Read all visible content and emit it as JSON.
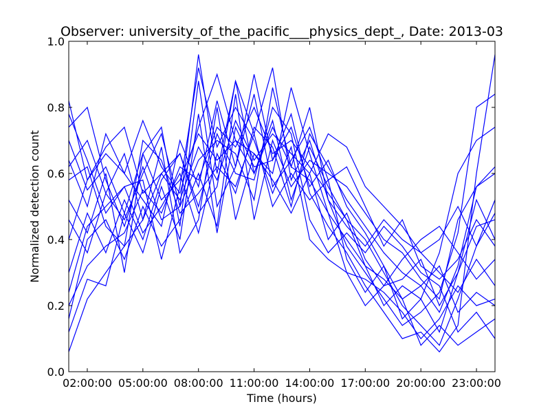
{
  "chart_data": {
    "type": "line",
    "title": "Observer: university_of_the_pacific___physics_dept_, Date: 2013-03",
    "xlabel": "Time (hours)",
    "ylabel": "Normalized detection count",
    "xlim": [
      1.0,
      24.0
    ],
    "ylim": [
      0.0,
      1.0
    ],
    "x_ticks": [
      {
        "value": 2,
        "label": "02:00:00"
      },
      {
        "value": 5,
        "label": "05:00:00"
      },
      {
        "value": 8,
        "label": "08:00:00"
      },
      {
        "value": 11,
        "label": "11:00:00"
      },
      {
        "value": 14,
        "label": "14:00:00"
      },
      {
        "value": 17,
        "label": "17:00:00"
      },
      {
        "value": 20,
        "label": "20:00:00"
      },
      {
        "value": 23,
        "label": "23:00:00"
      }
    ],
    "y_ticks": [
      {
        "value": 0.0,
        "label": "0.0"
      },
      {
        "value": 0.2,
        "label": "0.2"
      },
      {
        "value": 0.4,
        "label": "0.4"
      },
      {
        "value": 0.6,
        "label": "0.6"
      },
      {
        "value": 0.8,
        "label": "0.8"
      },
      {
        "value": 1.0,
        "label": "1.0"
      }
    ],
    "line_color": "#0000ff",
    "grid": false,
    "x": [
      1,
      2,
      3,
      4,
      5,
      6,
      7,
      8,
      9,
      10,
      11,
      12,
      13,
      14,
      15,
      16,
      17,
      18,
      19,
      20,
      21,
      22,
      23,
      24
    ],
    "series": [
      {
        "values": [
          0.7,
          0.55,
          0.62,
          0.48,
          0.66,
          0.52,
          0.58,
          0.72,
          0.64,
          0.7,
          0.6,
          0.74,
          0.62,
          0.58,
          0.48,
          0.4,
          0.32,
          0.28,
          0.22,
          0.26,
          0.18,
          0.32,
          0.56,
          0.6
        ]
      },
      {
        "values": [
          0.2,
          0.32,
          0.38,
          0.42,
          0.55,
          0.48,
          0.62,
          0.58,
          0.74,
          0.68,
          0.8,
          0.66,
          0.7,
          0.62,
          0.54,
          0.46,
          0.4,
          0.3,
          0.2,
          0.14,
          0.08,
          0.22,
          0.38,
          0.52
        ]
      },
      {
        "values": [
          0.62,
          0.7,
          0.54,
          0.46,
          0.6,
          0.72,
          0.5,
          0.96,
          0.6,
          0.88,
          0.72,
          0.92,
          0.58,
          0.7,
          0.52,
          0.38,
          0.3,
          0.22,
          0.14,
          0.18,
          0.24,
          0.42,
          0.8,
          0.84
        ]
      },
      {
        "values": [
          0.4,
          0.58,
          0.66,
          0.6,
          0.52,
          0.44,
          0.7,
          0.56,
          0.82,
          0.62,
          0.9,
          0.64,
          0.78,
          0.54,
          0.44,
          0.36,
          0.26,
          0.18,
          0.1,
          0.12,
          0.06,
          0.14,
          0.6,
          0.96
        ]
      },
      {
        "values": [
          0.06,
          0.22,
          0.3,
          0.38,
          0.46,
          0.6,
          0.52,
          0.68,
          0.58,
          0.76,
          0.64,
          0.72,
          0.66,
          0.6,
          0.4,
          0.48,
          0.34,
          0.26,
          0.28,
          0.34,
          0.2,
          0.3,
          0.44,
          0.46
        ]
      },
      {
        "values": [
          0.78,
          0.64,
          0.48,
          0.56,
          0.42,
          0.5,
          0.6,
          0.42,
          0.66,
          0.54,
          0.74,
          0.68,
          0.5,
          0.72,
          0.62,
          0.52,
          0.44,
          0.36,
          0.3,
          0.26,
          0.32,
          0.18,
          0.24,
          0.2
        ]
      },
      {
        "values": [
          0.52,
          0.42,
          0.6,
          0.3,
          0.66,
          0.74,
          0.44,
          0.88,
          0.5,
          0.62,
          0.84,
          0.56,
          0.64,
          0.74,
          0.58,
          0.34,
          0.24,
          0.32,
          0.16,
          0.22,
          0.12,
          0.3,
          0.52,
          0.4
        ]
      },
      {
        "values": [
          0.3,
          0.48,
          0.36,
          0.52,
          0.4,
          0.58,
          0.66,
          0.5,
          0.72,
          0.6,
          0.58,
          0.8,
          0.72,
          0.46,
          0.36,
          0.42,
          0.36,
          0.44,
          0.38,
          0.3,
          0.26,
          0.12,
          0.18,
          0.1
        ]
      },
      {
        "values": [
          0.64,
          0.5,
          0.72,
          0.6,
          0.76,
          0.62,
          0.54,
          0.74,
          0.9,
          0.7,
          0.66,
          0.6,
          0.86,
          0.66,
          0.48,
          0.3,
          0.2,
          0.26,
          0.34,
          0.4,
          0.44,
          0.36,
          0.28,
          0.34
        ]
      },
      {
        "values": [
          0.16,
          0.4,
          0.46,
          0.34,
          0.5,
          0.38,
          0.46,
          0.6,
          0.44,
          0.84,
          0.46,
          0.7,
          0.56,
          0.64,
          0.6,
          0.56,
          0.48,
          0.4,
          0.36,
          0.28,
          0.22,
          0.46,
          0.56,
          0.62
        ]
      },
      {
        "values": [
          0.74,
          0.8,
          0.58,
          0.44,
          0.62,
          0.46,
          0.5,
          0.64,
          0.7,
          0.66,
          0.52,
          0.86,
          0.62,
          0.8,
          0.52,
          0.44,
          0.38,
          0.46,
          0.4,
          0.36,
          0.4,
          0.5,
          0.38,
          0.48
        ]
      },
      {
        "values": [
          0.12,
          0.28,
          0.26,
          0.48,
          0.36,
          0.56,
          0.4,
          0.78,
          0.42,
          0.74,
          0.62,
          0.64,
          0.74,
          0.56,
          0.64,
          0.5,
          0.42,
          0.32,
          0.22,
          0.08,
          0.14,
          0.08,
          0.12,
          0.16
        ]
      },
      {
        "values": [
          0.58,
          0.62,
          0.44,
          0.38,
          0.7,
          0.64,
          0.48,
          0.54,
          0.62,
          0.56,
          0.72,
          0.5,
          0.6,
          0.52,
          0.58,
          0.62,
          0.5,
          0.38,
          0.46,
          0.32,
          0.28,
          0.34,
          0.46,
          0.38
        ]
      },
      {
        "values": [
          0.46,
          0.36,
          0.54,
          0.66,
          0.46,
          0.68,
          0.36,
          0.46,
          0.8,
          0.46,
          0.66,
          0.58,
          0.48,
          0.6,
          0.72,
          0.68,
          0.56,
          0.5,
          0.44,
          0.36,
          0.3,
          0.24,
          0.34,
          0.26
        ]
      },
      {
        "values": [
          0.24,
          0.44,
          0.5,
          0.56,
          0.58,
          0.34,
          0.56,
          0.92,
          0.68,
          0.8,
          0.7,
          0.54,
          0.68,
          0.4,
          0.34,
          0.3,
          0.28,
          0.24,
          0.18,
          0.1,
          0.16,
          0.26,
          0.2,
          0.22
        ]
      },
      {
        "values": [
          0.82,
          0.58,
          0.68,
          0.74,
          0.54,
          0.6,
          0.66,
          0.48,
          0.56,
          0.88,
          0.6,
          0.76,
          0.52,
          0.68,
          0.56,
          0.46,
          0.32,
          0.2,
          0.26,
          0.22,
          0.36,
          0.6,
          0.7,
          0.74
        ]
      }
    ]
  }
}
